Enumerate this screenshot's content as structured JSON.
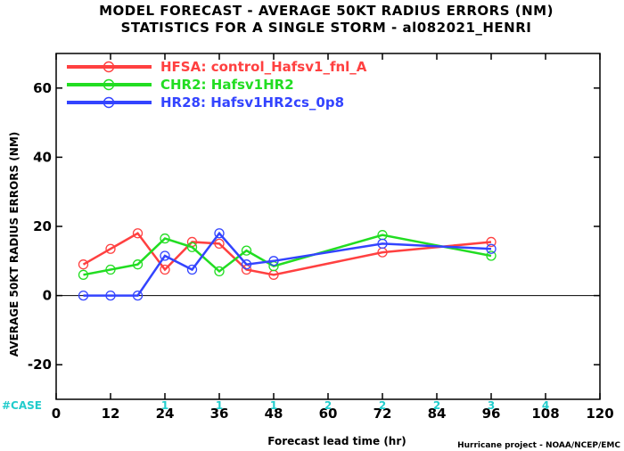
{
  "chart_data": {
    "type": "line",
    "title": "MODEL FORECAST - AVERAGE 50KT RADIUS ERRORS (NM)",
    "subtitle": "STATISTICS FOR A SINGLE STORM - al082021_HENRI",
    "xlabel": "Forecast lead time (hr)",
    "ylabel": "AVERAGE 50KT RADIUS ERRORS (NM)",
    "xlim": [
      0,
      120
    ],
    "ylim": [
      -30,
      70
    ],
    "xticks": [
      0,
      12,
      24,
      36,
      48,
      60,
      72,
      84,
      96,
      108,
      120
    ],
    "yticks": [
      -20,
      0,
      20,
      40,
      60
    ],
    "zero_line": true,
    "legend_position": "top-left",
    "series": [
      {
        "name": "HFSA: control_Hafsv1_fnl_A",
        "color": "#ff4040",
        "x": [
          6,
          12,
          18,
          24,
          30,
          36,
          42,
          48,
          72,
          96
        ],
        "y": [
          9,
          13.5,
          18,
          7.5,
          15.5,
          15,
          7.5,
          6,
          12.5,
          15.5
        ]
      },
      {
        "name": "CHR2: Hafsv1HR2",
        "color": "#22dd22",
        "x": [
          6,
          12,
          18,
          24,
          30,
          36,
          42,
          48,
          72,
          96
        ],
        "y": [
          6,
          7.5,
          9,
          16.5,
          14,
          7,
          13,
          8.5,
          17.5,
          11.5
        ]
      },
      {
        "name": "HR28: Hafsv1HR2cs_0p8",
        "color": "#3344ff",
        "x": [
          6,
          12,
          18,
          24,
          30,
          36,
          42,
          48,
          72,
          96
        ],
        "y": [
          0,
          0,
          0,
          11.5,
          7.5,
          18,
          9,
          10,
          15,
          13.5
        ]
      }
    ],
    "case_label": "#CASE",
    "case_color": "#22cccc",
    "case_counts": [
      {
        "x": 24,
        "label": "1"
      },
      {
        "x": 36,
        "label": "1"
      },
      {
        "x": 48,
        "label": "1"
      },
      {
        "x": 60,
        "label": "2"
      },
      {
        "x": 72,
        "label": "2"
      },
      {
        "x": 84,
        "label": "2"
      },
      {
        "x": 96,
        "label": "3"
      },
      {
        "x": 108,
        "label": "4"
      }
    ],
    "credit": "Hurricane project - NOAA/NCEP/EMC"
  }
}
